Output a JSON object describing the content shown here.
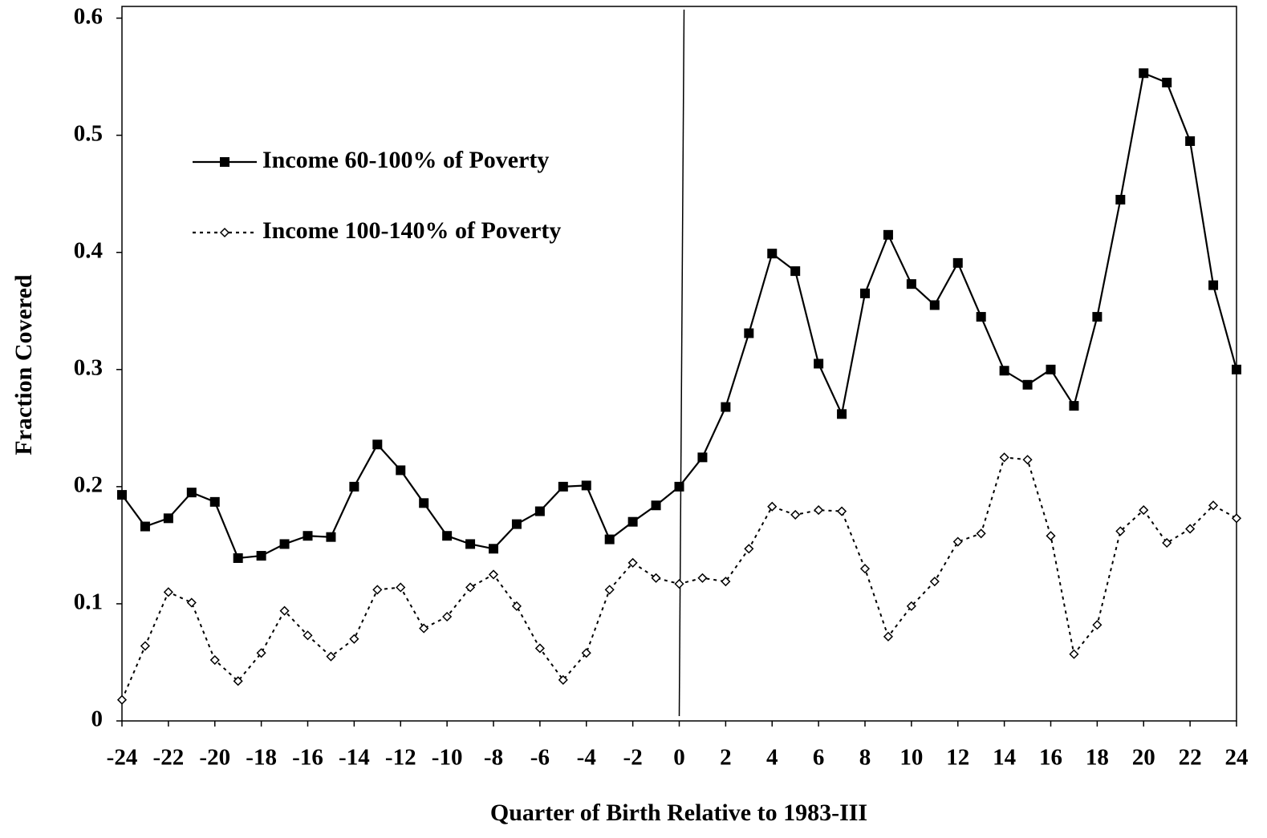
{
  "chart_data": {
    "type": "line",
    "x_label": "Quarter of Birth Relative to 1983-III",
    "y_label": "Fraction Covered",
    "x": [
      -24,
      -23,
      -22,
      -21,
      -20,
      -19,
      -18,
      -17,
      -16,
      -15,
      -14,
      -13,
      -12,
      -11,
      -10,
      -9,
      -8,
      -7,
      -6,
      -5,
      -4,
      -3,
      -2,
      -1,
      0,
      1,
      2,
      3,
      4,
      5,
      6,
      7,
      8,
      9,
      10,
      11,
      12,
      13,
      14,
      15,
      16,
      17,
      18,
      19,
      20,
      21,
      22,
      23,
      24
    ],
    "series": [
      {
        "name": "Income 60-100% of Poverty",
        "color": "#000000",
        "line_style": "solid",
        "marker": "square",
        "values": [
          0.193,
          0.166,
          0.173,
          0.195,
          0.187,
          0.139,
          0.141,
          0.151,
          0.158,
          0.157,
          0.2,
          0.236,
          0.214,
          0.186,
          0.158,
          0.151,
          0.147,
          0.168,
          0.179,
          0.2,
          0.201,
          0.155,
          0.17,
          0.184,
          0.2,
          0.225,
          0.268,
          0.331,
          0.399,
          0.384,
          0.305,
          0.262,
          0.365,
          0.415,
          0.373,
          0.355,
          0.391,
          0.345,
          0.299,
          0.287,
          0.3,
          0.269,
          0.345,
          0.445,
          0.553,
          0.545,
          0.495,
          0.372,
          0.3
        ]
      },
      {
        "name": "Income 100-140% of Poverty",
        "color": "#000000",
        "line_style": "dashed",
        "marker": "diamond",
        "values": [
          0.018,
          0.064,
          0.11,
          0.101,
          0.052,
          0.034,
          0.058,
          0.094,
          0.073,
          0.055,
          0.07,
          0.112,
          0.114,
          0.079,
          0.089,
          0.114,
          0.125,
          0.098,
          0.062,
          0.035,
          0.058,
          0.112,
          0.135,
          0.122,
          0.117,
          0.122,
          0.119,
          0.147,
          0.183,
          0.176,
          0.18,
          0.179,
          0.13,
          0.072,
          0.098,
          0.119,
          0.153,
          0.16,
          0.225,
          0.223,
          0.158,
          0.057,
          0.082,
          0.162,
          0.18,
          0.152,
          0.164,
          0.184,
          0.173
        ]
      }
    ],
    "xlim": [
      -24,
      24
    ],
    "xticks": [
      -24,
      -22,
      -20,
      -18,
      -16,
      -14,
      -12,
      -10,
      -8,
      -6,
      -4,
      -2,
      0,
      2,
      4,
      6,
      8,
      10,
      12,
      14,
      16,
      18,
      20,
      22,
      24
    ],
    "ylim": [
      0,
      0.61
    ],
    "yticks": [
      0,
      0.1,
      0.2,
      0.3,
      0.4,
      0.5,
      0.6
    ],
    "reference_line_x": 0,
    "legend_position": "upper-left",
    "grid": false
  }
}
